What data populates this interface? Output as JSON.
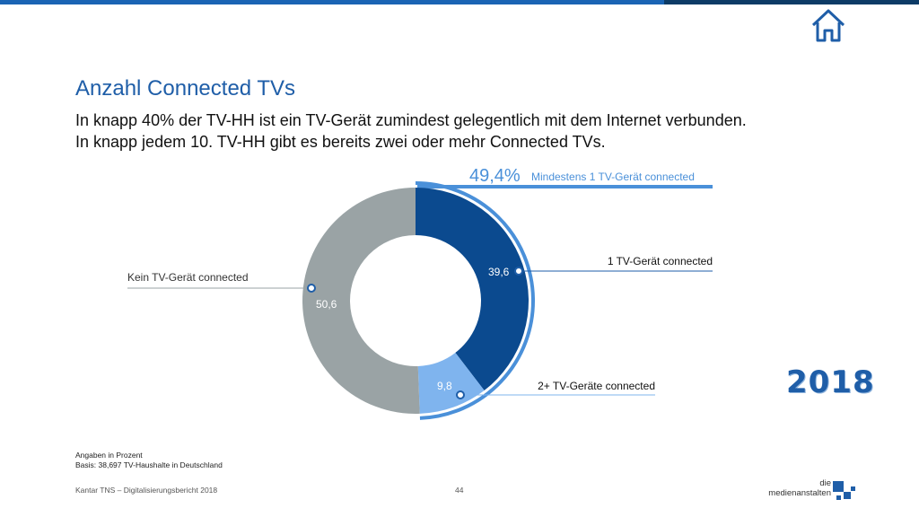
{
  "header": {
    "title": "Anzahl Connected TVs",
    "subtitle": "In knapp 40% der TV-HH ist ein TV-Gerät zumindest gelegentlich mit dem Internet verbunden. In knapp jedem 10. TV-HH gibt es bereits zwei oder mehr Connected TVs."
  },
  "colors": {
    "brand_blue": "#1f5ea8",
    "dark_blue": "#0b4a8f",
    "light_blue": "#7fb4ee",
    "grey": "#9aa3a5",
    "accent_blue": "#4a90d9"
  },
  "chart_data": {
    "type": "pie",
    "style": "donut",
    "unit": "Prozent",
    "slices": [
      {
        "label": "1 TV-Gerät connected",
        "value": 39.6,
        "display": "39,6",
        "color": "#0b4a8f"
      },
      {
        "label": "2+ TV-Geräte connected",
        "value": 9.8,
        "display": "9,8",
        "color": "#7fb4ee"
      },
      {
        "label": "Kein TV-Gerät connected",
        "value": 50.6,
        "display": "50,6",
        "color": "#9aa3a5"
      }
    ],
    "summary": {
      "value": "49,4%",
      "label": "Mindestens 1 TV-Gerät connected"
    }
  },
  "notes": {
    "line1": "Angaben in Prozent",
    "line2": "Basis: 38,697 TV-Haushalte in Deutschland"
  },
  "footer": {
    "source": "Kantar TNS – Digitalisierungsbericht 2018",
    "page_number": "44",
    "year_badge": "2018",
    "logo_line1": "die",
    "logo_line2": "medienanstalten"
  },
  "icons": {
    "home": "home-icon"
  }
}
